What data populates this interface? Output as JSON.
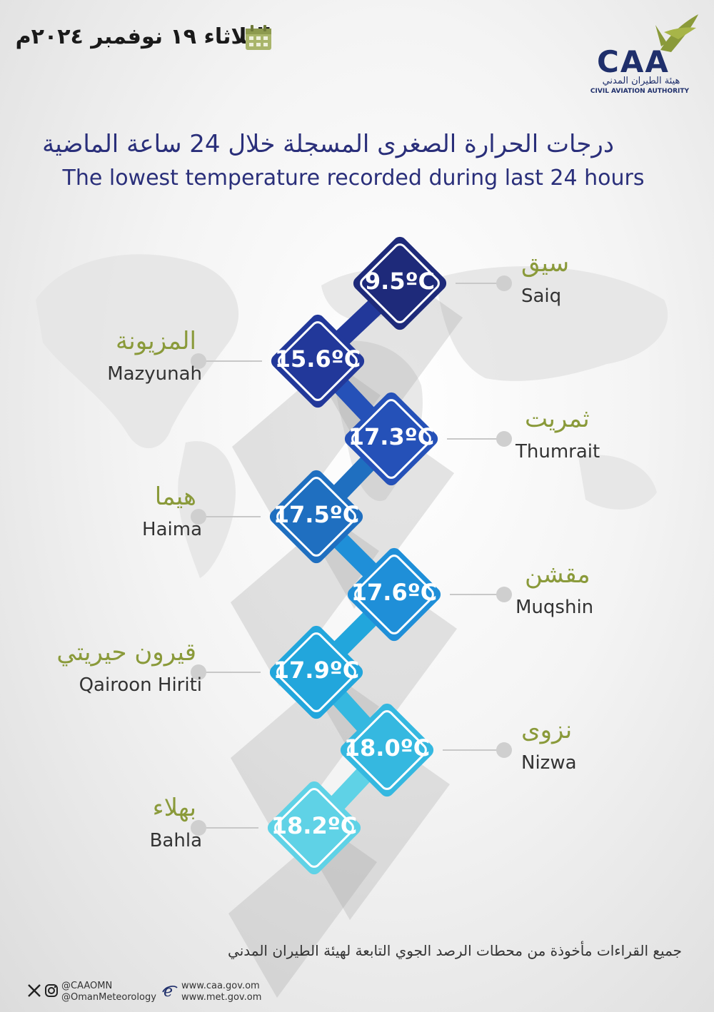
{
  "header": {
    "date": "الثلاثاء ١٩ نوفمبر ٢٠٢٤م",
    "logo_letters": "CAA",
    "logo_arabic": "هيئة الطيران المدني",
    "logo_english": "CIVIL AVIATION AUTHORITY"
  },
  "title": {
    "arabic": "درجات الحرارة الصغرى المسجلة خلال 24 ساعة الماضية",
    "english": "The lowest temperature recorded during last 24 hours"
  },
  "stations": [
    {
      "ar": "سيق",
      "en": "Saiq",
      "temp": "9.5ºC",
      "color": "#1e2a7a"
    },
    {
      "ar": "المزيونة",
      "en": "Mazyunah",
      "temp": "15.6ºC",
      "color": "#22389a"
    },
    {
      "ar": "ثمريت",
      "en": "Thumrait",
      "temp": "17.3ºC",
      "color": "#2551b8"
    },
    {
      "ar": "هيما",
      "en": "Haima",
      "temp": "17.5ºC",
      "color": "#1f6fc0"
    },
    {
      "ar": "مقشن",
      "en": "Muqshin",
      "temp": "17.6ºC",
      "color": "#1f8fd8"
    },
    {
      "ar": "قيرون حيريتي",
      "en": "Qairoon Hiriti",
      "temp": "17.9ºC",
      "color": "#22a6dc"
    },
    {
      "ar": "نزوى",
      "en": "Nizwa",
      "temp": "18.0ºC",
      "color": "#35b8e0"
    },
    {
      "ar": "بهلاء",
      "en": "Bahla",
      "temp": "18.2ºC",
      "color": "#5fd2e6"
    }
  ],
  "footer": {
    "note": "جميع القراءات مأخوذة من محطات الرصد الجوي التابعة لهيئة الطيران المدني",
    "social_1": "@CAAOMN",
    "social_2": "@OmanMeteorology",
    "web_1": "www.caa.gov.om",
    "web_2": "www.met.gov.om"
  }
}
